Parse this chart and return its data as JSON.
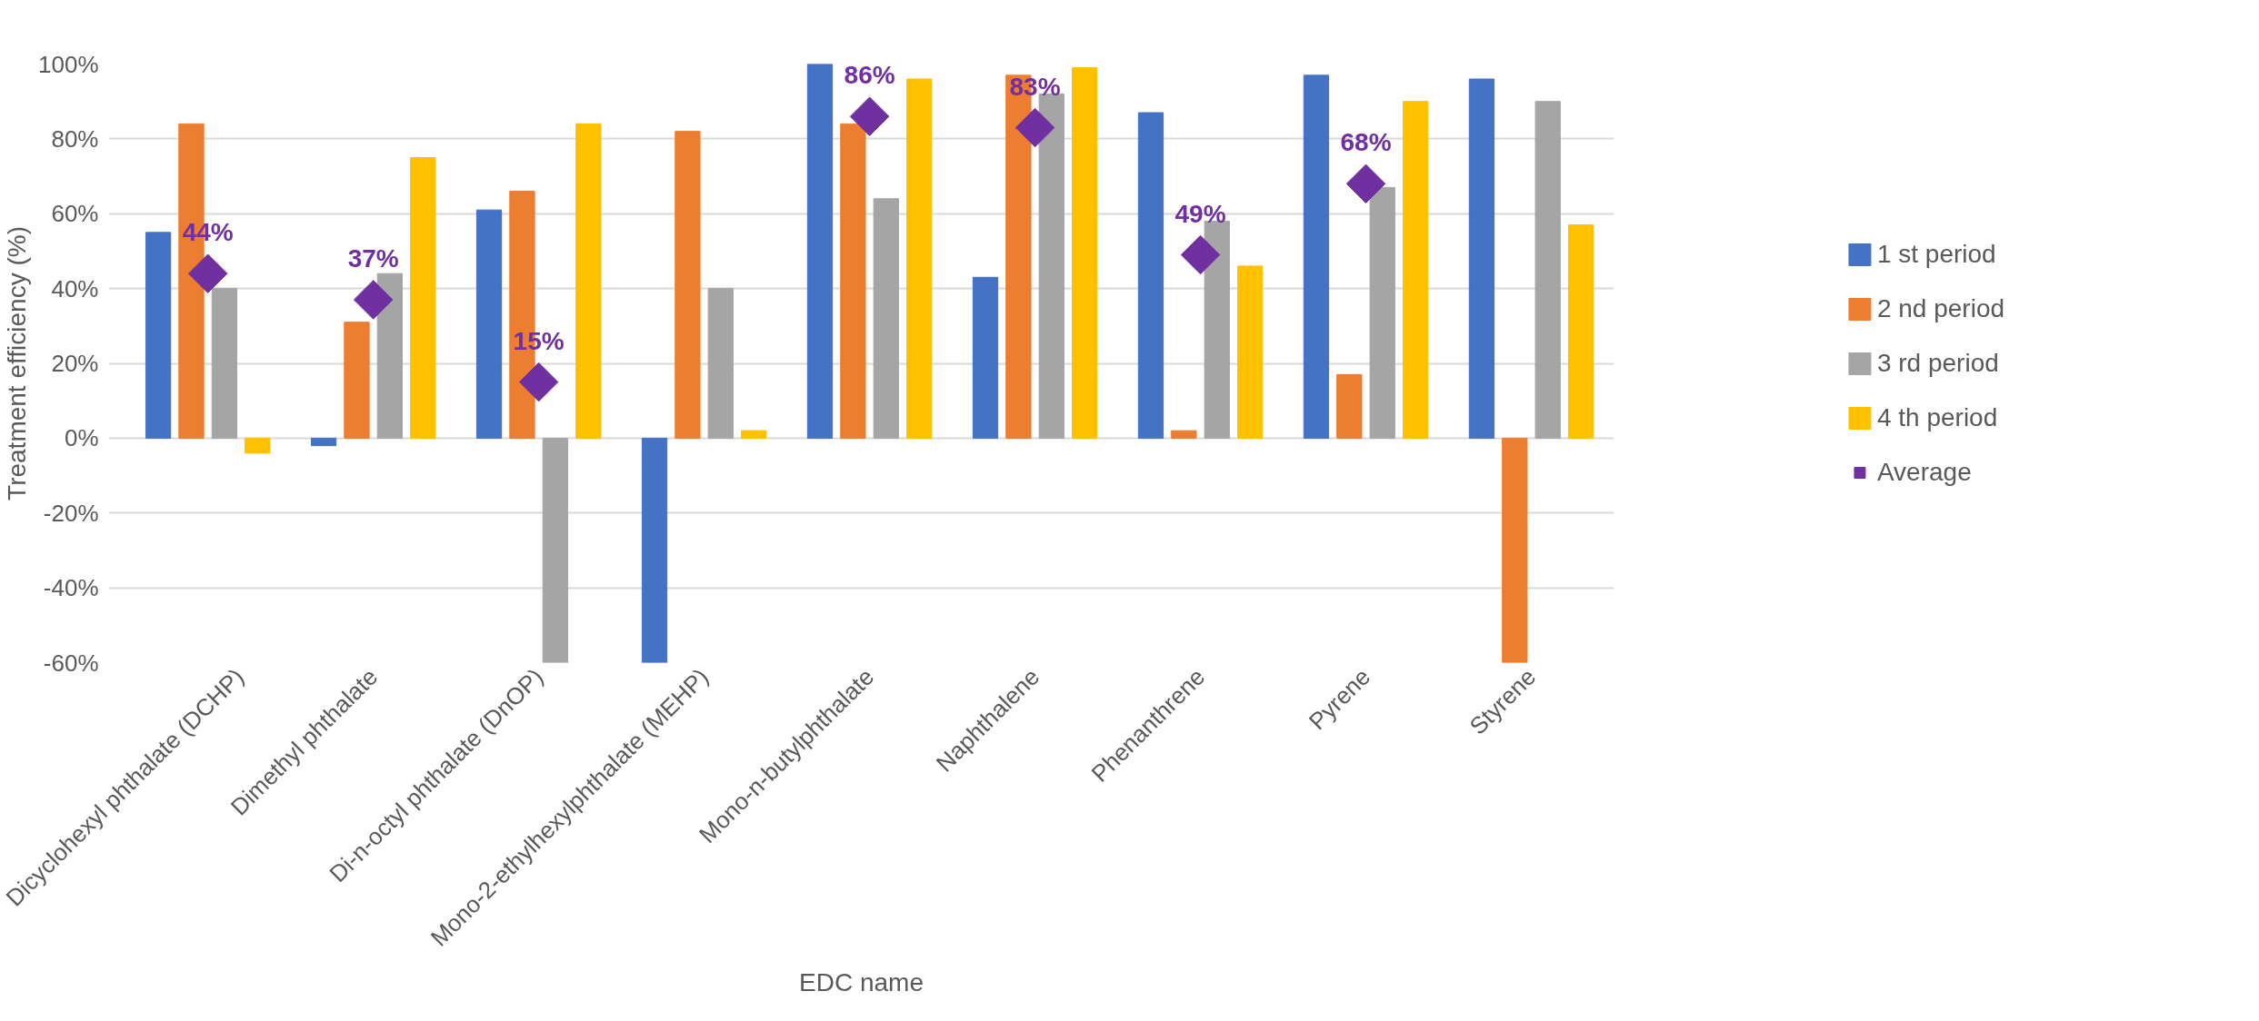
{
  "chart_data": {
    "type": "bar",
    "xlabel": "EDC name",
    "ylabel": "Treatment efficiency (%)",
    "categories": [
      "Dicyclohexyl phthalate (DCHP)",
      "Dimethyl phthalate",
      "Di-n-octyl phthalate (DnOP)",
      "Mono-2-ethylhexylphthalate (MEHP)",
      "Mono-n-butylphthalate",
      "Naphthalene",
      "Phenanthrene",
      "Pyrene",
      "Styrene"
    ],
    "series": [
      {
        "name": "1 st period",
        "color": "#4472c4",
        "values": [
          55,
          -2,
          61,
          -60,
          100,
          43,
          87,
          97,
          96
        ]
      },
      {
        "name": "2 nd period",
        "color": "#ed7d31",
        "values": [
          84,
          31,
          66,
          82,
          84,
          97,
          2,
          17,
          -60
        ]
      },
      {
        "name": "3 rd period",
        "color": "#a5a5a5",
        "values": [
          40,
          44,
          -60,
          40,
          64,
          92,
          58,
          67,
          90
        ]
      },
      {
        "name": "4 th period",
        "color": "#ffc000",
        "values": [
          -4,
          75,
          84,
          2,
          96,
          99,
          46,
          90,
          57
        ]
      },
      {
        "name": "Average",
        "type": "scatter",
        "marker": "diamond",
        "color": "#7030a0",
        "values": [
          44,
          37,
          15,
          null,
          86,
          83,
          49,
          68,
          null
        ],
        "value_labels": [
          "44%",
          "37%",
          "15%",
          null,
          "86%",
          "83%",
          "49%",
          "68%",
          null
        ]
      }
    ],
    "ylim": [
      -60,
      100
    ],
    "yticks": [
      {
        "value": -60,
        "label": "-60%"
      },
      {
        "value": -40,
        "label": "-40%"
      },
      {
        "value": -20,
        "label": "-20%"
      },
      {
        "value": 0,
        "label": "0%"
      },
      {
        "value": 20,
        "label": "20%"
      },
      {
        "value": 40,
        "label": "40%"
      },
      {
        "value": 60,
        "label": "60%"
      },
      {
        "value": 80,
        "label": "80%"
      },
      {
        "value": 100,
        "label": "100%"
      }
    ],
    "grid": "y",
    "legend": "right"
  }
}
